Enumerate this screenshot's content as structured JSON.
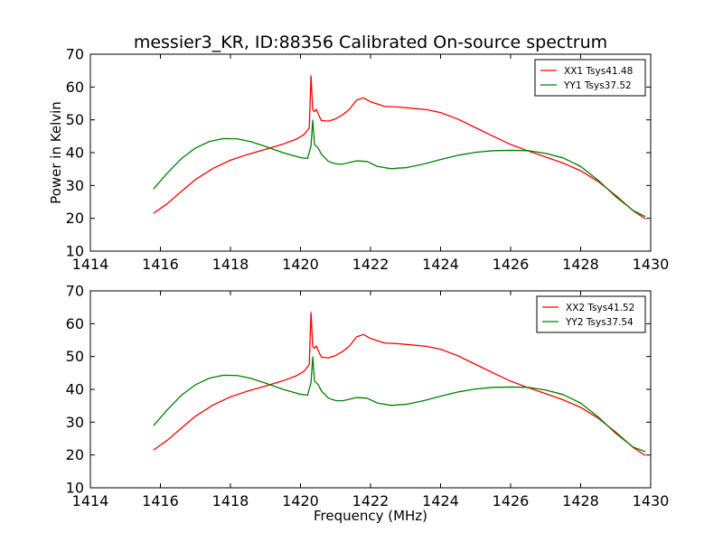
{
  "figure": {
    "title": "messier3_KR, ID:88356 Calibrated On-source spectrum"
  },
  "chart_data": [
    {
      "type": "line",
      "title": "messier3_KR, ID:88356 Calibrated On-source spectrum",
      "xlabel": "",
      "ylabel": "Power in Kelvin",
      "xlim": [
        1414,
        1430
      ],
      "ylim": [
        10,
        70
      ],
      "xticks": [
        1414,
        1416,
        1418,
        1420,
        1422,
        1424,
        1426,
        1428,
        1430
      ],
      "yticks": [
        10,
        20,
        30,
        40,
        50,
        60,
        70
      ],
      "grid": false,
      "legend_position": "top-right",
      "series": [
        {
          "name": "XX1 Tsys41.48",
          "color": "#ff0000",
          "x": [
            1415.8,
            1416.2,
            1416.6,
            1417.0,
            1417.5,
            1418.0,
            1418.5,
            1419.0,
            1419.5,
            1419.9,
            1420.1,
            1420.25,
            1420.3,
            1420.35,
            1420.4,
            1420.45,
            1420.5,
            1420.55,
            1420.6,
            1420.8,
            1421.0,
            1421.2,
            1421.4,
            1421.6,
            1421.8,
            1422.0,
            1422.4,
            1422.8,
            1423.2,
            1423.6,
            1424.0,
            1424.5,
            1425.0,
            1425.5,
            1426.0,
            1426.5,
            1427.0,
            1427.5,
            1428.0,
            1428.5,
            1429.0,
            1429.5,
            1429.85
          ],
          "y": [
            21.5,
            24.5,
            28.2,
            31.8,
            35.2,
            37.7,
            39.5,
            41.0,
            42.6,
            44.2,
            45.5,
            47.5,
            63.4,
            53.0,
            52.5,
            53.2,
            52.0,
            50.8,
            49.8,
            49.6,
            50.3,
            51.5,
            53.2,
            56.0,
            56.7,
            55.5,
            54.1,
            53.9,
            53.5,
            53.1,
            52.2,
            50.2,
            47.6,
            45.0,
            42.5,
            40.5,
            38.7,
            36.8,
            34.5,
            31.2,
            27.0,
            22.3,
            19.8
          ]
        },
        {
          "name": "YY1 Tsys37.52",
          "color": "#008000",
          "x": [
            1415.8,
            1416.2,
            1416.6,
            1417.0,
            1417.4,
            1417.8,
            1418.2,
            1418.6,
            1419.0,
            1419.5,
            1420.0,
            1420.2,
            1420.3,
            1420.35,
            1420.4,
            1420.5,
            1420.6,
            1420.8,
            1421.0,
            1421.2,
            1421.4,
            1421.6,
            1421.9,
            1422.2,
            1422.6,
            1422.8,
            1423.0,
            1423.5,
            1424.0,
            1424.5,
            1425.0,
            1425.5,
            1426.0,
            1426.5,
            1427.0,
            1427.5,
            1428.0,
            1428.5,
            1429.0,
            1429.5,
            1429.85
          ],
          "y": [
            28.9,
            33.8,
            38.2,
            41.4,
            43.4,
            44.3,
            44.2,
            43.3,
            41.9,
            40.0,
            38.5,
            38.2,
            42.0,
            49.9,
            42.5,
            41.5,
            39.5,
            37.3,
            36.6,
            36.5,
            37.0,
            37.5,
            37.3,
            35.8,
            35.1,
            35.3,
            35.4,
            36.5,
            37.9,
            39.2,
            40.1,
            40.6,
            40.7,
            40.6,
            39.8,
            38.4,
            35.8,
            31.6,
            26.6,
            22.4,
            20.5
          ]
        }
      ]
    },
    {
      "type": "line",
      "title": "",
      "xlabel": "Frequency (MHz)",
      "ylabel": "",
      "xlim": [
        1414,
        1430
      ],
      "ylim": [
        10,
        70
      ],
      "xticks": [
        1414,
        1416,
        1418,
        1420,
        1422,
        1424,
        1426,
        1428,
        1430
      ],
      "yticks": [
        10,
        20,
        30,
        40,
        50,
        60,
        70
      ],
      "grid": false,
      "legend_position": "top-right",
      "series": [
        {
          "name": "XX2 Tsys41.52",
          "color": "#ff0000",
          "x": [
            1415.8,
            1416.2,
            1416.6,
            1417.0,
            1417.5,
            1418.0,
            1418.5,
            1419.0,
            1419.5,
            1419.9,
            1420.1,
            1420.25,
            1420.3,
            1420.35,
            1420.4,
            1420.45,
            1420.5,
            1420.55,
            1420.6,
            1420.8,
            1421.0,
            1421.2,
            1421.4,
            1421.6,
            1421.8,
            1422.0,
            1422.4,
            1422.8,
            1423.2,
            1423.6,
            1424.0,
            1424.5,
            1425.0,
            1425.5,
            1426.0,
            1426.5,
            1427.0,
            1427.5,
            1428.0,
            1428.5,
            1429.0,
            1429.5,
            1429.85
          ],
          "y": [
            21.5,
            24.5,
            28.2,
            31.8,
            35.2,
            37.7,
            39.5,
            41.0,
            42.6,
            44.2,
            45.5,
            47.5,
            63.4,
            53.0,
            52.5,
            53.2,
            52.0,
            50.8,
            49.8,
            49.6,
            50.3,
            51.5,
            53.2,
            56.0,
            56.7,
            55.5,
            54.1,
            53.9,
            53.5,
            53.1,
            52.2,
            50.2,
            47.6,
            45.0,
            42.5,
            40.5,
            38.7,
            36.8,
            34.5,
            31.2,
            27.0,
            22.3,
            19.8
          ]
        },
        {
          "name": "YY2 Tsys37.54",
          "color": "#008000",
          "x": [
            1415.8,
            1416.2,
            1416.6,
            1417.0,
            1417.4,
            1417.8,
            1418.2,
            1418.6,
            1419.0,
            1419.5,
            1420.0,
            1420.2,
            1420.3,
            1420.35,
            1420.4,
            1420.5,
            1420.6,
            1420.8,
            1421.0,
            1421.2,
            1421.4,
            1421.6,
            1421.9,
            1422.2,
            1422.6,
            1422.8,
            1423.0,
            1423.5,
            1424.0,
            1424.5,
            1425.0,
            1425.5,
            1426.0,
            1426.5,
            1427.0,
            1427.5,
            1428.0,
            1428.5,
            1429.0,
            1429.5,
            1429.85
          ],
          "y": [
            28.9,
            33.8,
            38.2,
            41.4,
            43.4,
            44.3,
            44.2,
            43.3,
            41.9,
            40.0,
            38.5,
            38.2,
            42.0,
            49.9,
            42.5,
            41.5,
            39.5,
            37.3,
            36.6,
            36.5,
            37.0,
            37.5,
            37.3,
            35.8,
            35.1,
            35.3,
            35.4,
            36.5,
            37.9,
            39.2,
            40.1,
            40.6,
            40.7,
            40.6,
            39.8,
            38.4,
            35.8,
            31.6,
            26.6,
            22.4,
            21.0
          ]
        }
      ]
    }
  ]
}
